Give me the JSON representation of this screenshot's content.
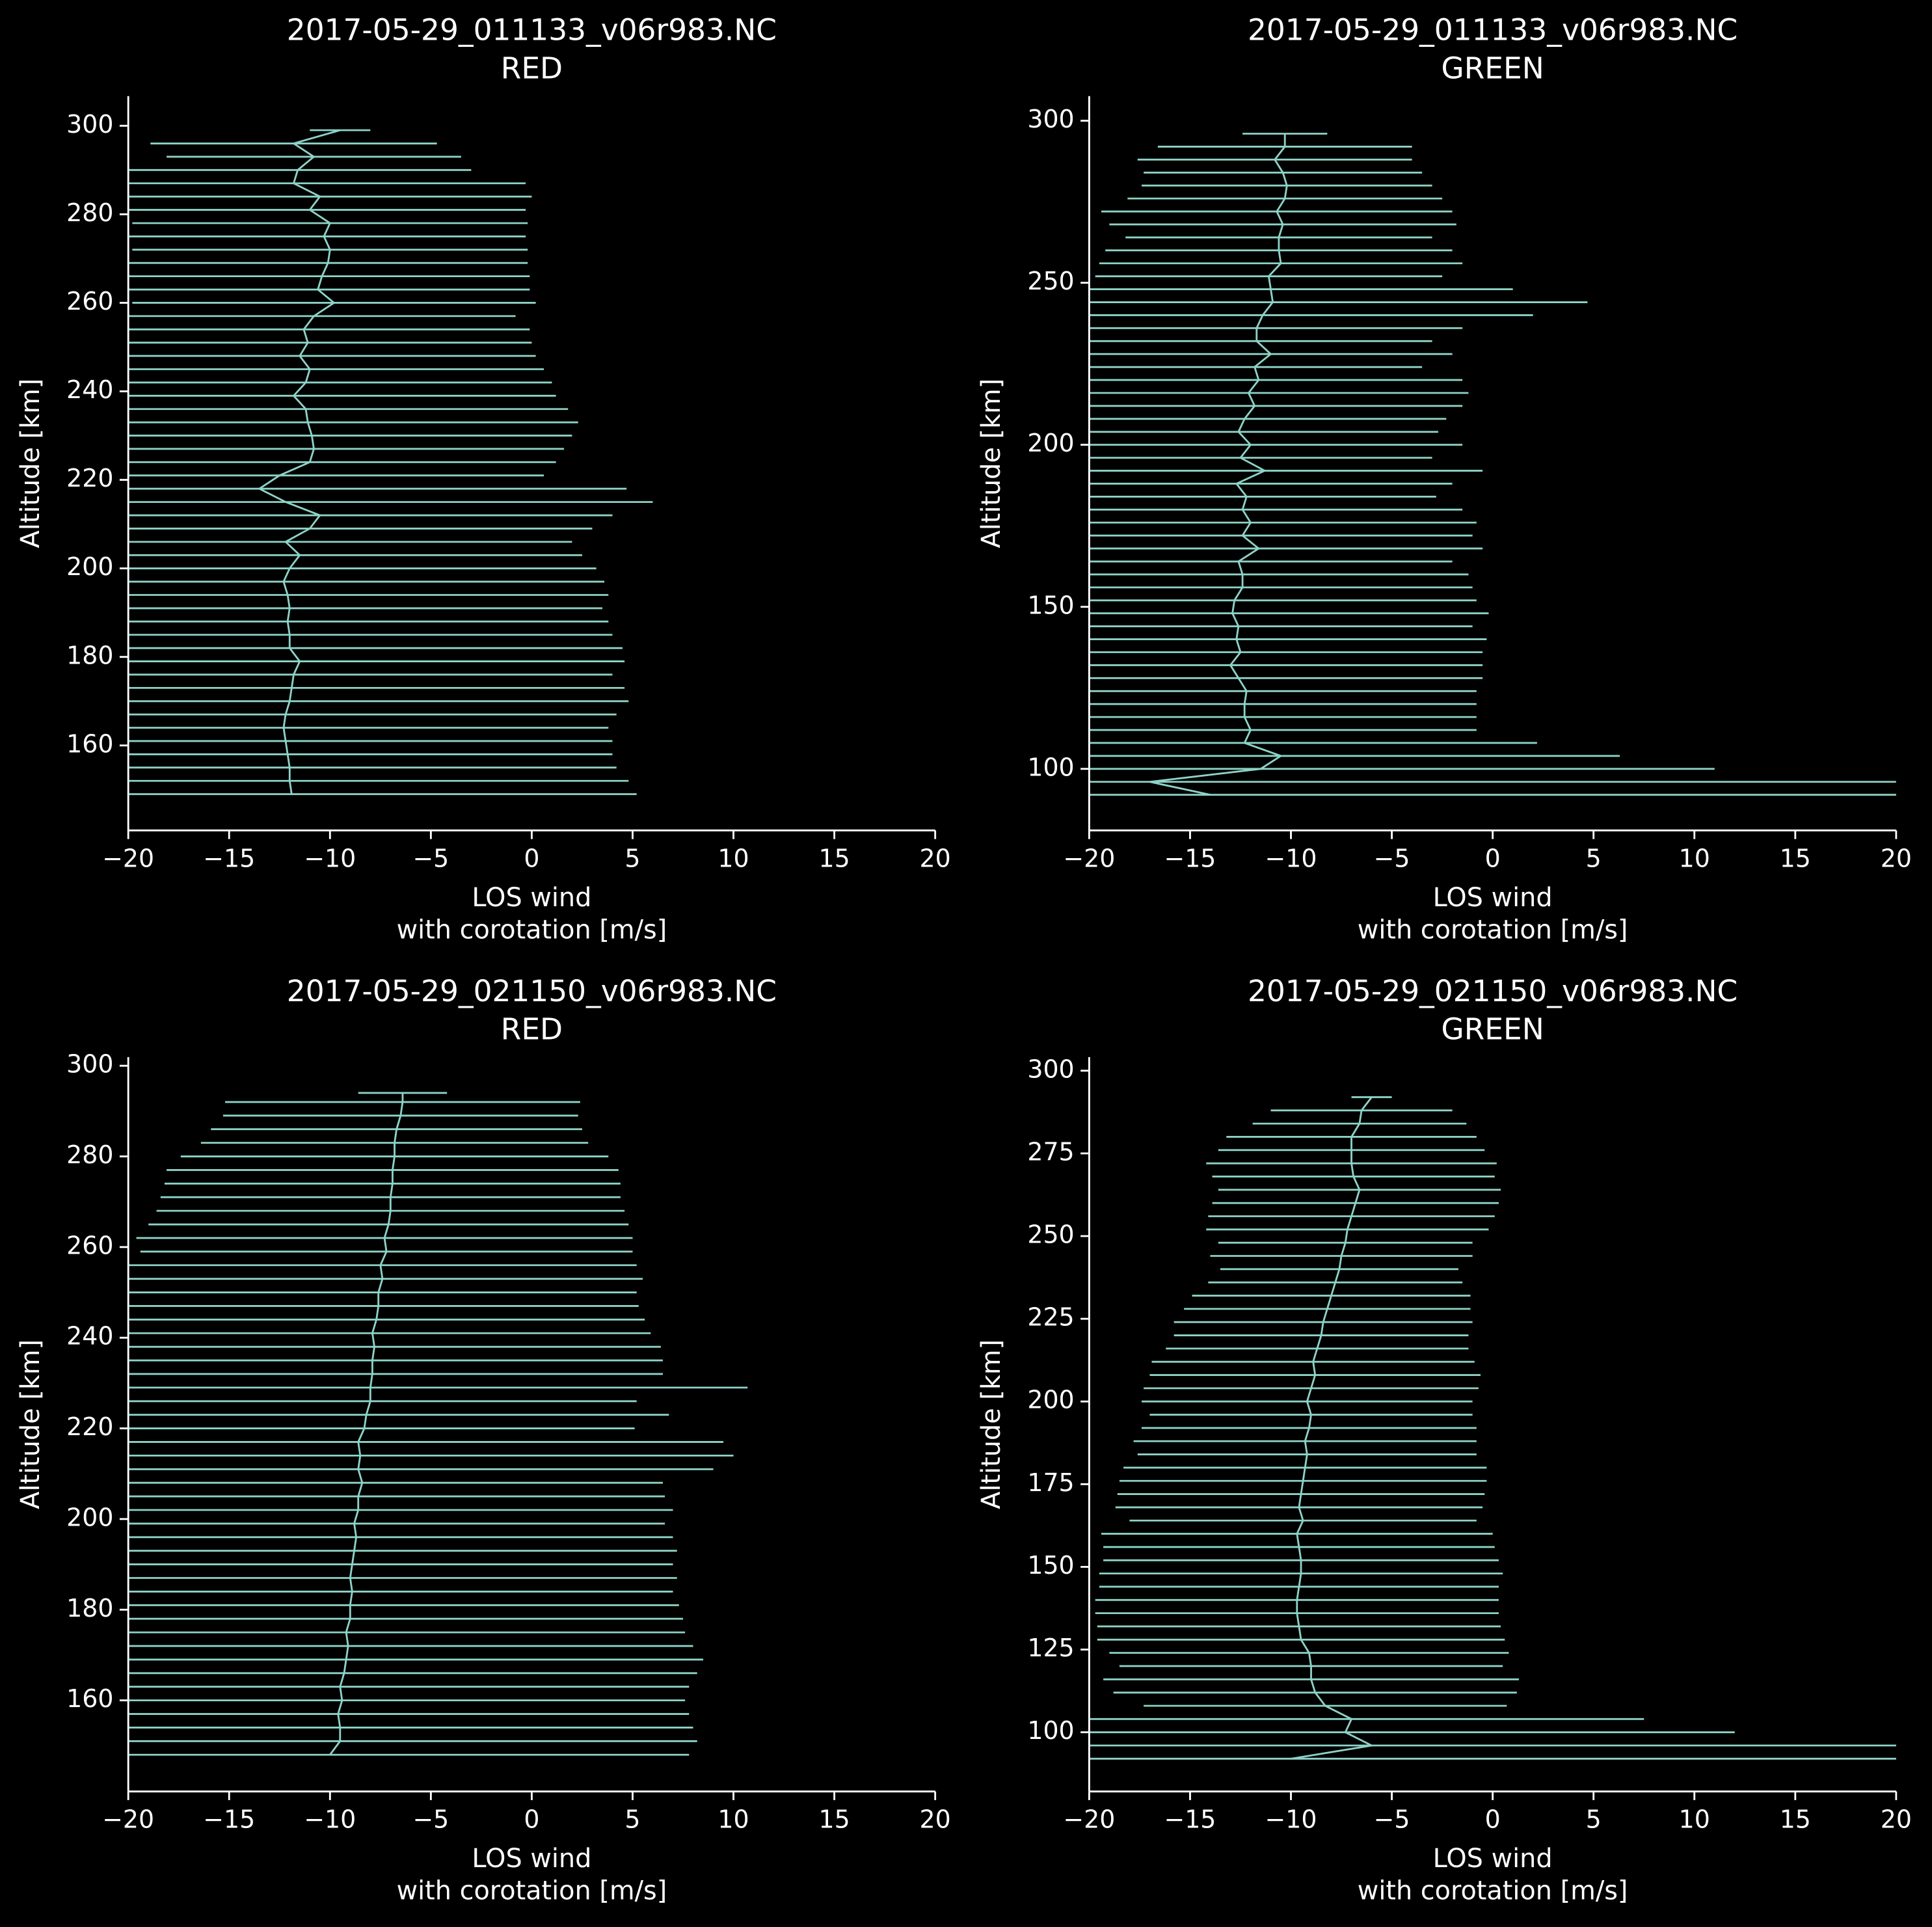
{
  "chart_data": [
    {
      "type": "errorbar",
      "title": "2017-05-29_011133_v06r983.NC",
      "subtitle": "RED",
      "xlabel": [
        "LOS wind",
        "with corotation [m/s]"
      ],
      "ylabel": "Altitude [km]",
      "color": "#8dd3c7",
      "xlim": [
        -20,
        20
      ],
      "xticks": [
        {
          "value": -20,
          "label": "−20"
        },
        {
          "value": -15,
          "label": "−15"
        },
        {
          "value": -10,
          "label": "−10"
        },
        {
          "value": -5,
          "label": "−5"
        },
        0,
        5,
        10,
        15,
        20
      ],
      "ylim": [
        140.8,
        306.7
      ],
      "yticks": [
        160,
        180,
        200,
        220,
        240,
        260,
        280,
        300
      ],
      "y": [
        149,
        152,
        155,
        158,
        161,
        164,
        167,
        170,
        173,
        176,
        179,
        182,
        185,
        188,
        191,
        194,
        197,
        200,
        203,
        206,
        209,
        212,
        215,
        218,
        221,
        224,
        227,
        230,
        233,
        236,
        239,
        242,
        245,
        248,
        251,
        254,
        257,
        260,
        263,
        266,
        269,
        272,
        275,
        278,
        281,
        284,
        287,
        290,
        293,
        296,
        299
      ],
      "values": [
        -11.9,
        -12.0,
        -12.0,
        -12.1,
        -12.2,
        -12.3,
        -12.2,
        -12.0,
        -11.9,
        -11.8,
        -11.5,
        -12.0,
        -12.0,
        -12.1,
        -12.0,
        -12.1,
        -12.3,
        -12.0,
        -11.5,
        -12.2,
        -11.0,
        -10.5,
        -12.2,
        -13.5,
        -12.5,
        -11.0,
        -10.8,
        -10.9,
        -11.1,
        -11.2,
        -11.8,
        -11.2,
        -11.0,
        -11.5,
        -11.1,
        -11.3,
        -10.8,
        -9.8,
        -10.6,
        -10.4,
        -10.1,
        -10.0,
        -10.3,
        -10.0,
        -11.0,
        -10.5,
        -11.8,
        -11.6,
        -10.8,
        -11.8,
        -9.5
      ],
      "xerr": [
        17.1,
        16.8,
        16.2,
        16.1,
        16.2,
        16.1,
        16.4,
        16.8,
        16.5,
        15.8,
        16.1,
        16.5,
        16.0,
        15.9,
        15.5,
        15.9,
        15.9,
        15.2,
        14.0,
        14.2,
        14.0,
        14.5,
        18.2,
        18.2,
        13.1,
        12.2,
        12.4,
        12.9,
        13.4,
        13.0,
        13.0,
        12.2,
        11.6,
        11.7,
        11.1,
        11.2,
        10.0,
        10.0,
        10.5,
        10.3,
        9.9,
        9.8,
        10.0,
        9.8,
        10.7,
        10.5,
        11.5,
        8.6,
        7.3,
        7.1,
        1.5
      ]
    },
    {
      "type": "errorbar",
      "title": "2017-05-29_011133_v06r983.NC",
      "subtitle": "GREEN",
      "xlabel": [
        "LOS wind",
        "with corotation [m/s]"
      ],
      "ylabel": "Altitude [km]",
      "color": "#8dd3c7",
      "xlim": [
        -20,
        20
      ],
      "xticks": [
        {
          "value": -20,
          "label": "−20"
        },
        {
          "value": -15,
          "label": "−15"
        },
        {
          "value": -10,
          "label": "−10"
        },
        {
          "value": -5,
          "label": "−5"
        },
        0,
        5,
        10,
        15,
        20
      ],
      "ylim": [
        81,
        307.6
      ],
      "yticks": [
        100,
        150,
        200,
        250,
        300
      ],
      "y": [
        92,
        96,
        100,
        104,
        108,
        112,
        116,
        120,
        124,
        128,
        132,
        136,
        140,
        144,
        148,
        152,
        156,
        160,
        164,
        168,
        172,
        176,
        180,
        184,
        188,
        192,
        196,
        200,
        204,
        208,
        212,
        216,
        220,
        224,
        228,
        232,
        236,
        240,
        244,
        248,
        252,
        256,
        260,
        264,
        268,
        272,
        276,
        280,
        284,
        288,
        292,
        296
      ],
      "values": [
        -14.0,
        -17.0,
        -11.5,
        -10.5,
        -12.3,
        -12.0,
        -12.3,
        -12.3,
        -12.2,
        -12.6,
        -13.0,
        -12.5,
        -12.7,
        -12.6,
        -12.9,
        -12.8,
        -12.4,
        -12.4,
        -12.6,
        -11.6,
        -12.4,
        -12.0,
        -12.4,
        -12.2,
        -12.7,
        -11.3,
        -12.5,
        -12.0,
        -12.6,
        -12.3,
        -11.8,
        -12.1,
        -11.6,
        -11.8,
        -11.0,
        -11.7,
        -11.7,
        -11.4,
        -10.9,
        -11.0,
        -11.1,
        -10.5,
        -10.6,
        -10.6,
        -10.4,
        -10.7,
        -10.3,
        -10.2,
        -10.4,
        -10.8,
        -10.3,
        -10.3
      ],
      "xerr": [
        36.0,
        37.0,
        22.5,
        16.8,
        14.5,
        11.2,
        11.5,
        11.5,
        11.4,
        12.1,
        12.5,
        12.0,
        12.4,
        11.6,
        12.7,
        12.0,
        11.4,
        11.2,
        10.6,
        11.1,
        11.4,
        11.2,
        10.9,
        9.4,
        10.7,
        10.8,
        9.5,
        10.5,
        9.9,
        10.0,
        10.3,
        10.9,
        10.1,
        8.3,
        9.0,
        8.7,
        10.2,
        13.4,
        15.6,
        12.0,
        8.6,
        9.0,
        8.6,
        7.6,
        8.6,
        8.7,
        7.8,
        7.2,
        6.9,
        6.8,
        6.3,
        2.1
      ]
    },
    {
      "type": "errorbar",
      "title": "2017-05-29_021150_v06r983.NC",
      "subtitle": "RED",
      "xlabel": [
        "LOS wind",
        "with corotation [m/s]"
      ],
      "ylabel": "Altitude [km]",
      "color": "#8dd3c7",
      "xlim": [
        -20,
        20
      ],
      "xticks": [
        {
          "value": -20,
          "label": "−20"
        },
        {
          "value": -15,
          "label": "−15"
        },
        {
          "value": -10,
          "label": "−10"
        },
        {
          "value": -5,
          "label": "−5"
        },
        0,
        5,
        10,
        15,
        20
      ],
      "ylim": [
        139.9,
        301.9
      ],
      "yticks": [
        160,
        180,
        200,
        220,
        240,
        260,
        280,
        300
      ],
      "y": [
        148,
        151,
        154,
        157,
        160,
        163,
        166,
        169,
        172,
        175,
        178,
        181,
        184,
        187,
        190,
        193,
        196,
        199,
        202,
        205,
        208,
        211,
        214,
        217,
        220,
        223,
        226,
        229,
        232,
        235,
        238,
        241,
        244,
        247,
        250,
        253,
        256,
        259,
        262,
        265,
        268,
        271,
        274,
        277,
        280,
        283,
        286,
        289,
        292,
        294
      ],
      "values": [
        -10.0,
        -9.5,
        -9.5,
        -9.6,
        -9.4,
        -9.5,
        -9.3,
        -9.2,
        -9.1,
        -9.2,
        -9.0,
        -9.0,
        -8.9,
        -9.0,
        -8.9,
        -8.8,
        -8.7,
        -8.8,
        -8.6,
        -8.6,
        -8.4,
        -8.6,
        -8.5,
        -8.6,
        -8.3,
        -8.2,
        -8.0,
        -8.0,
        -7.9,
        -7.9,
        -7.8,
        -7.9,
        -7.7,
        -7.6,
        -7.6,
        -7.4,
        -7.5,
        -7.2,
        -7.3,
        -7.1,
        -7.0,
        -7.0,
        -6.9,
        -6.9,
        -6.8,
        -6.8,
        -6.7,
        -6.5,
        -6.4,
        -6.4
      ],
      "xerr": [
        17.8,
        17.7,
        17.5,
        17.4,
        17.0,
        17.3,
        17.5,
        17.7,
        17.1,
        16.8,
        16.5,
        16.3,
        15.9,
        16.2,
        15.9,
        16.0,
        15.7,
        15.4,
        15.6,
        15.2,
        14.9,
        17.6,
        18.5,
        18.1,
        13.4,
        15.0,
        13.2,
        18.7,
        14.4,
        14.4,
        14.2,
        13.8,
        13.3,
        12.9,
        12.8,
        12.9,
        12.7,
        12.2,
        12.3,
        11.9,
        11.6,
        11.4,
        11.3,
        11.2,
        10.6,
        9.6,
        9.2,
        8.8,
        8.8,
        2.2
      ]
    },
    {
      "type": "errorbar",
      "title": "2017-05-29_021150_v06r983.NC",
      "subtitle": "GREEN",
      "xlabel": [
        "LOS wind",
        "with corotation [m/s]"
      ],
      "ylabel": "Altitude [km]",
      "color": "#8dd3c7",
      "xlim": [
        -20,
        20
      ],
      "xticks": [
        {
          "value": -20,
          "label": "−20"
        },
        {
          "value": -15,
          "label": "−15"
        },
        {
          "value": -10,
          "label": "−10"
        },
        {
          "value": -5,
          "label": "−5"
        },
        0,
        5,
        10,
        15,
        20
      ],
      "ylim": [
        82.1,
        304.1
      ],
      "yticks": [
        100,
        125,
        150,
        175,
        200,
        225,
        250,
        275,
        300
      ],
      "y": [
        92,
        96,
        100,
        104,
        108,
        112,
        116,
        120,
        124,
        128,
        132,
        136,
        140,
        144,
        148,
        152,
        156,
        160,
        164,
        168,
        172,
        176,
        180,
        184,
        188,
        192,
        196,
        200,
        204,
        208,
        212,
        216,
        220,
        224,
        228,
        232,
        236,
        240,
        244,
        248,
        252,
        256,
        260,
        264,
        268,
        272,
        276,
        280,
        284,
        288,
        292
      ],
      "values": [
        -10.0,
        -6.0,
        -7.3,
        -7.0,
        -8.3,
        -8.8,
        -9.0,
        -9.0,
        -9.1,
        -9.5,
        -9.6,
        -9.7,
        -9.7,
        -9.6,
        -9.5,
        -9.5,
        -9.6,
        -9.7,
        -9.4,
        -9.6,
        -9.5,
        -9.4,
        -9.3,
        -9.2,
        -9.3,
        -9.1,
        -9.0,
        -9.2,
        -9.0,
        -8.8,
        -8.9,
        -8.7,
        -8.5,
        -8.4,
        -8.2,
        -8.0,
        -7.8,
        -7.6,
        -7.5,
        -7.3,
        -7.2,
        -7.0,
        -6.8,
        -6.6,
        -6.9,
        -7.0,
        -7.0,
        -7.0,
        -6.6,
        -6.5,
        -6.0
      ],
      "xerr": [
        35,
        30,
        19.3,
        14.5,
        9.0,
        10.0,
        10.3,
        9.5,
        9.9,
        10.1,
        10.0,
        10.0,
        10.0,
        9.9,
        10.0,
        9.8,
        9.7,
        9.7,
        8.6,
        9.1,
        9.1,
        9.1,
        9.0,
        8.4,
        8.5,
        8.3,
        8.0,
        8.2,
        8.3,
        8.2,
        8.0,
        7.5,
        7.3,
        7.4,
        7.1,
        6.9,
        6.3,
        5.9,
        6.5,
        6.3,
        7.0,
        7.1,
        7.1,
        7.0,
        7.0,
        7.2,
        6.6,
        6.2,
        5.3,
        4.5,
        1.0
      ]
    }
  ]
}
